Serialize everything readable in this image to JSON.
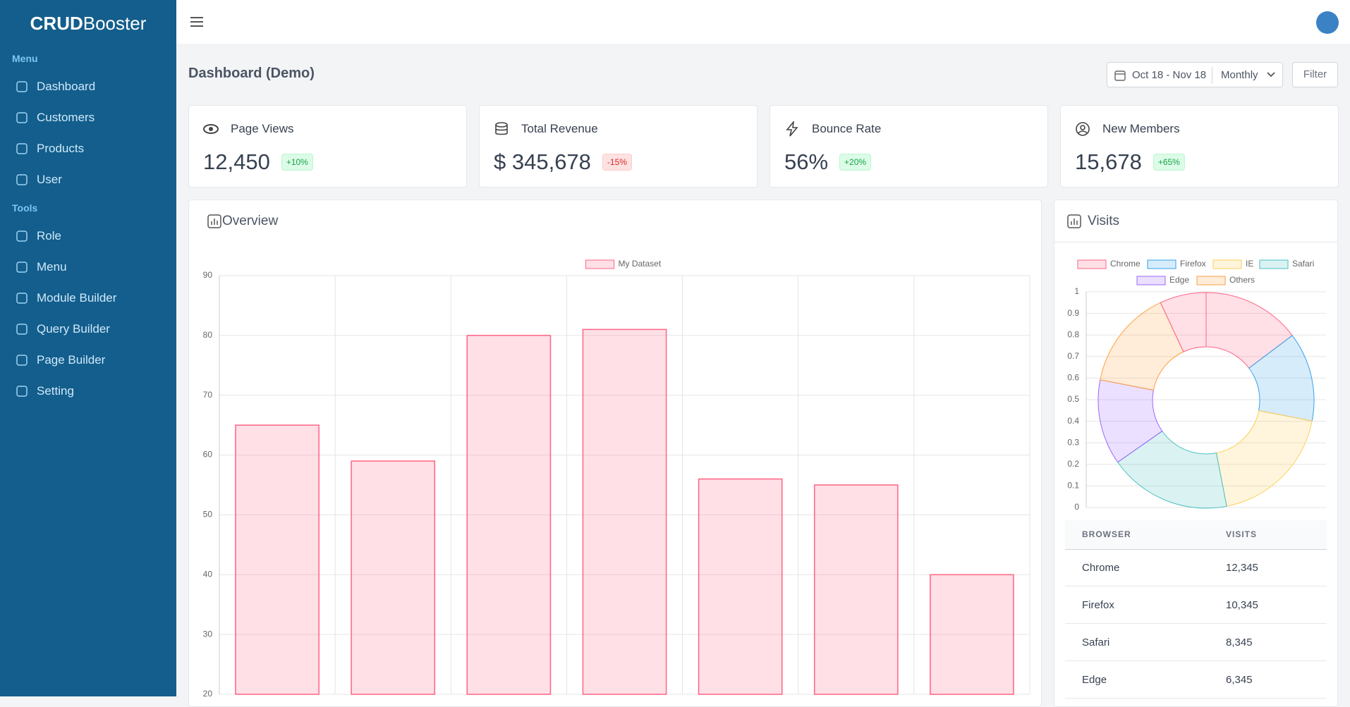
{
  "sidebar": {
    "logo": {
      "bold": "CRUD",
      "rest": "Booster"
    },
    "sections": [
      {
        "title": "Menu",
        "items": [
          "Dashboard",
          "Customers",
          "Products",
          "User"
        ]
      },
      {
        "title": "Tools",
        "items": [
          "Role",
          "Menu",
          "Module Builder",
          "Query Builder",
          "Page Builder",
          "Setting"
        ]
      }
    ]
  },
  "header": {
    "title": "Dashboard (Demo)",
    "date_range": "Oct 18 - Nov 18",
    "period": "Monthly",
    "filter": "Filter"
  },
  "stats": [
    {
      "label": "Page Views",
      "value": "12,450",
      "change": "+10%"
    },
    {
      "label": "Total Revenue",
      "value": "$ 345,678",
      "change": "-15%"
    },
    {
      "label": "Bounce Rate",
      "value": "56%",
      "change": "+20%"
    },
    {
      "label": "New Members",
      "value": "15,678",
      "change": "+65%"
    }
  ],
  "table": {
    "columns": [
      "BROWSER",
      "VISITS"
    ],
    "rows": [
      [
        "Chrome",
        "12,345"
      ],
      [
        "Firefox",
        "10,345"
      ],
      [
        "Safari",
        "8,345"
      ],
      [
        "Edge",
        "6,345"
      ]
    ]
  },
  "chart_data": [
    {
      "type": "bar",
      "title": "Overview",
      "categories": [
        null,
        null,
        null,
        null,
        null,
        null,
        null
      ],
      "series": [
        {
          "name": "My Dataset",
          "color": "#ff6384",
          "values": [
            65,
            59,
            80,
            81,
            56,
            55,
            40
          ]
        }
      ],
      "ylim": [
        20,
        90
      ],
      "yticks": [
        20,
        30,
        40,
        50,
        60,
        70,
        80,
        90
      ],
      "grid": true,
      "legend": "top"
    },
    {
      "type": "doughnut",
      "title": "Visits",
      "categories": [
        "Chrome",
        "Firefox",
        "IE",
        "Safari",
        "Edge",
        "Others",
        null
      ],
      "values": [
        53,
        48,
        68,
        66,
        46,
        54,
        25
      ],
      "colors": [
        "#ff6384",
        "#36a2eb",
        "#ffce56",
        "#4bc0c0",
        "#9966ff",
        "#ff9f40",
        "#ff6384"
      ],
      "ylim": [
        0,
        1
      ],
      "yticks": [
        0,
        0.1,
        0.2,
        0.3,
        0.4,
        0.5,
        0.6,
        0.7,
        0.8,
        0.9,
        1
      ],
      "grid": true,
      "legend": "top"
    }
  ]
}
